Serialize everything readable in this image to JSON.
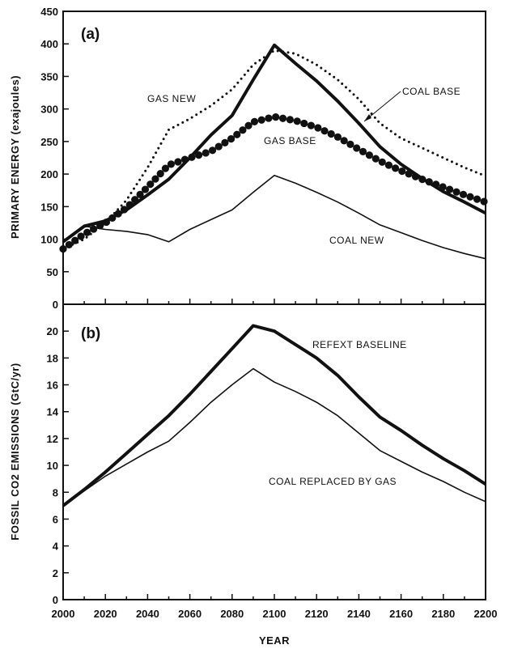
{
  "chart_data": [
    {
      "type": "line",
      "panel_label": "(a)",
      "ylabel": "PRIMARY ENERGY  (exajoules)",
      "xlabel": "",
      "xlim": [
        2000,
        2200
      ],
      "ylim": [
        0,
        450
      ],
      "y_ticks": [
        0,
        50,
        100,
        150,
        200,
        250,
        300,
        350,
        400,
        450
      ],
      "series": [
        {
          "name": "GAS NEW",
          "style": "small-dotted",
          "x": [
            2000,
            2010,
            2020,
            2030,
            2040,
            2050,
            2060,
            2070,
            2080,
            2090,
            2100,
            2110,
            2120,
            2130,
            2140,
            2150,
            2160,
            2170,
            2180,
            2190,
            2200
          ],
          "y": [
            85,
            100,
            125,
            160,
            210,
            268,
            285,
            305,
            330,
            368,
            390,
            385,
            368,
            345,
            315,
            278,
            255,
            240,
            225,
            210,
            197
          ]
        },
        {
          "name": "COAL BASE",
          "style": "thick-solid",
          "x": [
            2000,
            2010,
            2020,
            2030,
            2040,
            2050,
            2060,
            2070,
            2080,
            2090,
            2100,
            2110,
            2120,
            2130,
            2140,
            2150,
            2160,
            2170,
            2180,
            2190,
            2200
          ],
          "y": [
            96,
            120,
            128,
            145,
            168,
            192,
            225,
            260,
            290,
            345,
            398,
            370,
            343,
            312,
            278,
            242,
            215,
            193,
            173,
            157,
            140
          ]
        },
        {
          "name": "GAS BASE",
          "style": "large-dots",
          "x": [
            2000,
            2010,
            2020,
            2030,
            2040,
            2050,
            2060,
            2070,
            2080,
            2090,
            2100,
            2110,
            2120,
            2130,
            2140,
            2150,
            2160,
            2170,
            2180,
            2190,
            2200
          ],
          "y": [
            85,
            108,
            125,
            148,
            180,
            214,
            225,
            235,
            255,
            280,
            288,
            282,
            272,
            257,
            238,
            220,
            205,
            192,
            180,
            168,
            157
          ]
        },
        {
          "name": "COAL NEW",
          "style": "thin-solid",
          "x": [
            2000,
            2010,
            2020,
            2030,
            2040,
            2050,
            2060,
            2070,
            2080,
            2090,
            2100,
            2110,
            2120,
            2130,
            2140,
            2150,
            2160,
            2170,
            2180,
            2190,
            2200
          ],
          "y": [
            96,
            120,
            115,
            112,
            107,
            96,
            115,
            130,
            145,
            172,
            198,
            186,
            172,
            157,
            140,
            122,
            110,
            98,
            87,
            78,
            70
          ]
        }
      ],
      "annotations": [
        "GAS NEW",
        "COAL BASE",
        "GAS BASE",
        "COAL NEW"
      ]
    },
    {
      "type": "line",
      "panel_label": "(b)",
      "ylabel": "FOSSIL CO2 EMISSIONS  (GtC/yr)",
      "xlabel": "YEAR",
      "xlim": [
        2000,
        2200
      ],
      "ylim": [
        0,
        22
      ],
      "x_ticks": [
        2000,
        2020,
        2040,
        2060,
        2080,
        2100,
        2120,
        2140,
        2160,
        2180,
        2200
      ],
      "y_ticks": [
        0,
        2,
        4,
        6,
        8,
        10,
        12,
        14,
        16,
        18,
        20
      ],
      "series": [
        {
          "name": "REFEXT BASELINE",
          "style": "thick-solid",
          "x": [
            2000,
            2010,
            2020,
            2030,
            2040,
            2050,
            2060,
            2070,
            2080,
            2090,
            2100,
            2110,
            2120,
            2130,
            2140,
            2150,
            2160,
            2170,
            2180,
            2190,
            2200
          ],
          "y": [
            7.0,
            8.2,
            9.5,
            10.9,
            12.3,
            13.7,
            15.3,
            17.0,
            18.7,
            20.4,
            20.0,
            19.0,
            18.0,
            16.7,
            15.1,
            13.6,
            12.6,
            11.5,
            10.5,
            9.6,
            8.6
          ]
        },
        {
          "name": "COAL REPLACED BY GAS",
          "style": "thin-solid",
          "x": [
            2000,
            2010,
            2020,
            2030,
            2040,
            2050,
            2060,
            2070,
            2080,
            2090,
            2100,
            2110,
            2120,
            2130,
            2140,
            2150,
            2160,
            2170,
            2180,
            2190,
            2200
          ],
          "y": [
            7.0,
            8.1,
            9.2,
            10.1,
            11.0,
            11.8,
            13.2,
            14.7,
            16.0,
            17.2,
            16.2,
            15.5,
            14.7,
            13.7,
            12.4,
            11.1,
            10.3,
            9.5,
            8.8,
            8.0,
            7.3
          ]
        }
      ],
      "annotations": [
        "REFEXT BASELINE",
        "COAL REPLACED BY GAS"
      ]
    }
  ]
}
